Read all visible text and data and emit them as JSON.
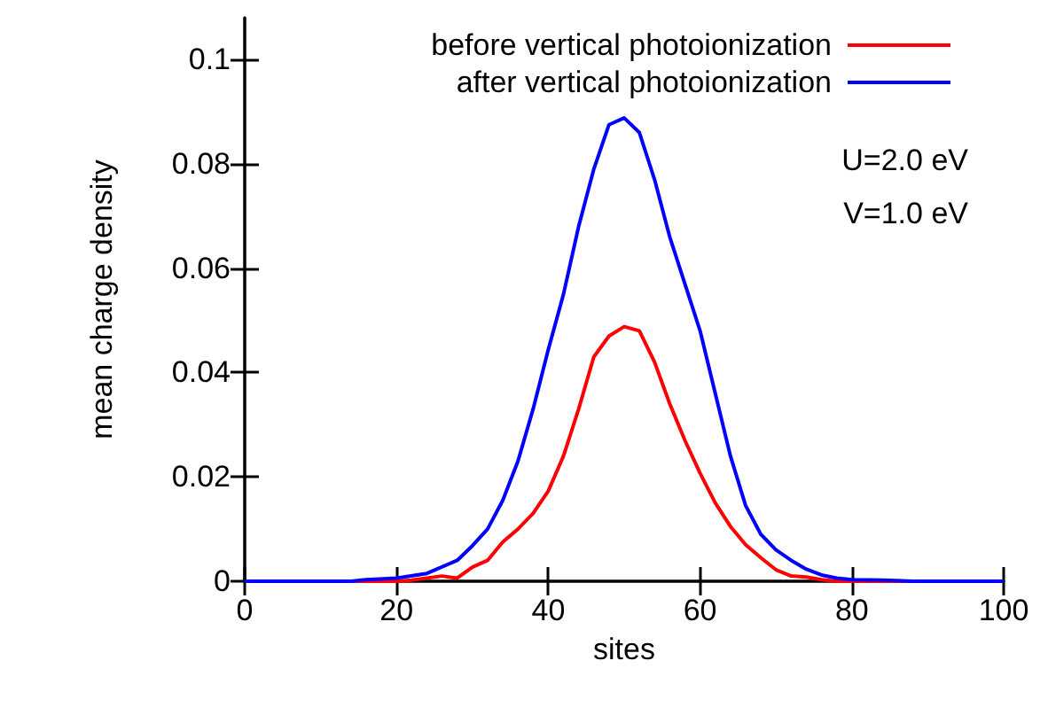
{
  "chart_data": {
    "type": "line",
    "xlabel": "sites",
    "ylabel": "mean charge density",
    "xlim": [
      0,
      100
    ],
    "xticks": [
      0,
      20,
      40,
      60,
      80,
      100
    ],
    "ylim": [
      0,
      0.108
    ],
    "yticks": [
      0,
      0.02,
      0.04,
      0.06,
      0.08,
      0.1
    ],
    "grid": false,
    "legend": "top right",
    "marker": "none",
    "line_style": "solid",
    "annotations": [
      "U=2.0 eV",
      "V=1.0 eV"
    ],
    "series": [
      {
        "name": "before vertical photoionization",
        "color": "#ff0000",
        "x": [
          0,
          10,
          20,
          22,
          26,
          28,
          30,
          32,
          34,
          36,
          38,
          40,
          42,
          44,
          46,
          48,
          50,
          52,
          54,
          56,
          58,
          60,
          62,
          64,
          66,
          68,
          70,
          72,
          74,
          76,
          78,
          90,
          100
        ],
        "values": [
          0,
          0,
          0,
          0.0002,
          0.001,
          0.0006,
          0.0027,
          0.004,
          0.0075,
          0.01,
          0.013,
          0.0173,
          0.024,
          0.033,
          0.043,
          0.047,
          0.0488,
          0.048,
          0.042,
          0.034,
          0.027,
          0.0207,
          0.015,
          0.0105,
          0.007,
          0.0045,
          0.0022,
          0.001,
          0.0008,
          0.0003,
          0,
          0,
          0
        ]
      },
      {
        "name": "after vertical photoionization",
        "color": "#0000ff",
        "x": [
          0,
          10,
          14,
          16,
          20,
          24,
          28,
          30,
          32,
          34,
          36,
          38,
          40,
          42,
          44,
          46,
          48,
          50,
          52,
          54,
          56,
          58,
          60,
          62,
          64,
          66,
          68,
          70,
          72,
          74,
          76,
          78,
          80,
          84,
          88,
          100
        ],
        "values": [
          0,
          0,
          0,
          0.0003,
          0.0006,
          0.0015,
          0.004,
          0.0068,
          0.01,
          0.0155,
          0.023,
          0.033,
          0.0444,
          0.055,
          0.068,
          0.079,
          0.0875,
          0.0888,
          0.086,
          0.077,
          0.066,
          0.057,
          0.048,
          0.036,
          0.024,
          0.0145,
          0.009,
          0.006,
          0.004,
          0.0023,
          0.0012,
          0.0006,
          0.0003,
          0.0002,
          0,
          0
        ]
      }
    ]
  }
}
